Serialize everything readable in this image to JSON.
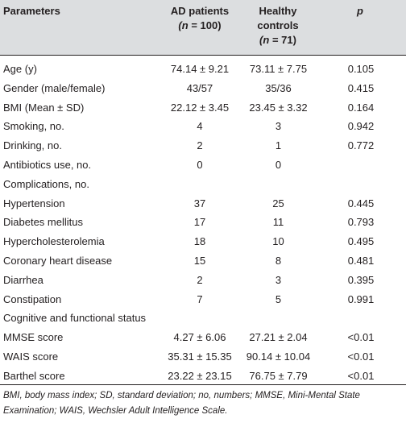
{
  "header": {
    "parameters": "Parameters",
    "ad_title": "AD patients",
    "ad_n": "(n = 100)",
    "hc_title_line1": "Healthy",
    "hc_title_line2": "controls",
    "hc_n": "(n = 71)",
    "p": "p"
  },
  "rows": [
    {
      "param": "Age (y)",
      "ad": "74.14 ± 9.21",
      "hc": "73.11 ± 7.75",
      "p": "0.105"
    },
    {
      "param": "Gender (male/female)",
      "ad": "43/57",
      "hc": "35/36",
      "p": "0.415"
    },
    {
      "param": "BMI (Mean ± SD)",
      "ad": "22.12 ± 3.45",
      "hc": "23.45 ± 3.32",
      "p": "0.164"
    },
    {
      "param": "Smoking, no.",
      "ad": "4",
      "hc": "3",
      "p": "0.942"
    },
    {
      "param": "Drinking, no.",
      "ad": "2",
      "hc": "1",
      "p": "0.772"
    },
    {
      "param": "Antibiotics use, no.",
      "ad": "0",
      "hc": "0",
      "p": ""
    },
    {
      "param": "Complications, no.",
      "ad": "",
      "hc": "",
      "p": ""
    },
    {
      "param": "Hypertension",
      "ad": "37",
      "hc": "25",
      "p": "0.445"
    },
    {
      "param": "Diabetes mellitus",
      "ad": "17",
      "hc": "11",
      "p": "0.793"
    },
    {
      "param": "Hypercholesterolemia",
      "ad": "18",
      "hc": "10",
      "p": "0.495"
    },
    {
      "param": "Coronary heart disease",
      "ad": "15",
      "hc": "8",
      "p": "0.481"
    },
    {
      "param": "Diarrhea",
      "ad": "2",
      "hc": "3",
      "p": "0.395"
    },
    {
      "param": "Constipation",
      "ad": "7",
      "hc": "5",
      "p": "0.991"
    },
    {
      "param": "Cognitive and functional status",
      "ad": "",
      "hc": "",
      "p": ""
    },
    {
      "param": "MMSE score",
      "ad": "4.27 ± 6.06",
      "hc": "27.21 ± 2.04",
      "p": "<0.01"
    },
    {
      "param": "WAIS score",
      "ad": "35.31 ± 15.35",
      "hc": "90.14 ± 10.04",
      "p": "<0.01"
    },
    {
      "param": "Barthel score",
      "ad": "23.22 ± 23.15",
      "hc": "76.75 ± 7.79",
      "p": "<0.01"
    }
  ],
  "footnote": "BMI, body mass index; SD, standard deviation; no, numbers; MMSE, Mini-Mental State Examination; WAIS, Wechsler Adult Intelligence Scale."
}
